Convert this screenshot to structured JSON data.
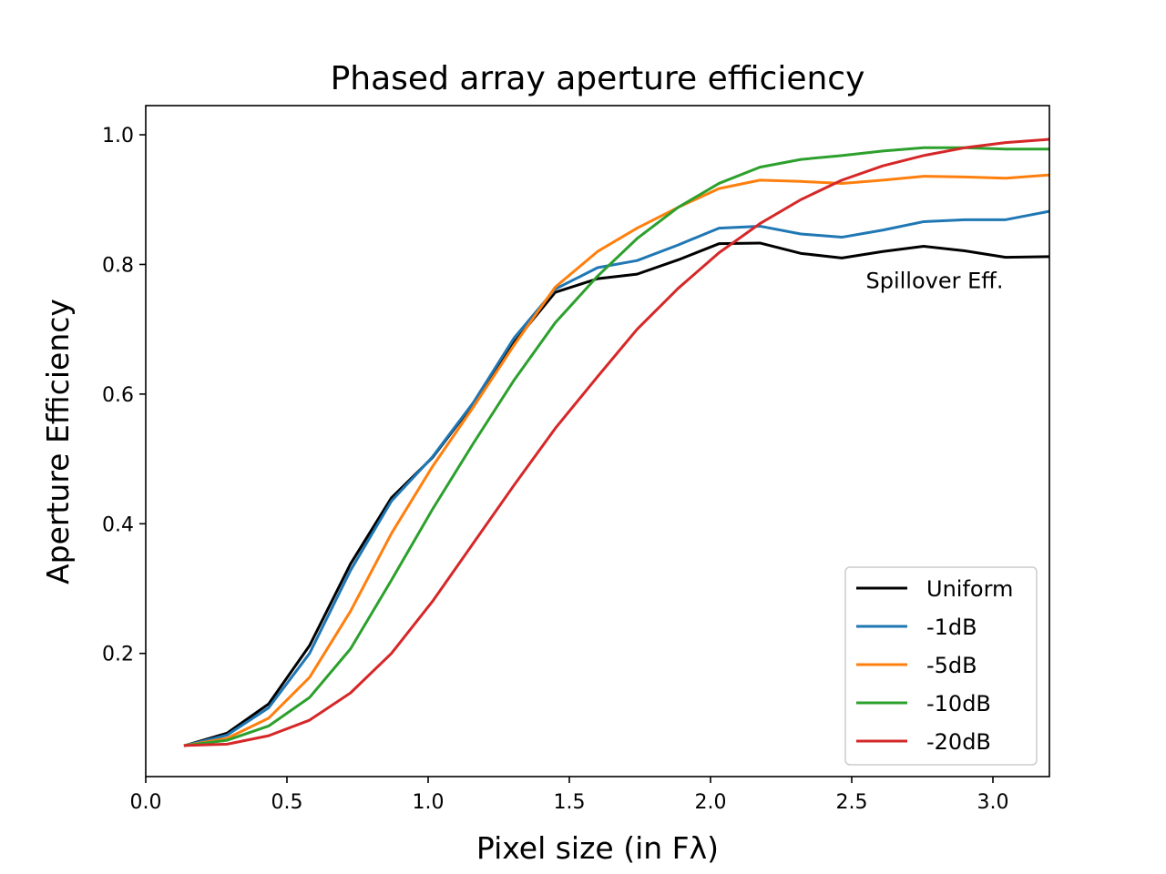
{
  "chart_data": {
    "type": "line",
    "title": "Phased array aperture efficiency",
    "xlabel": "Pixel size (in Fλ)",
    "ylabel": "Aperture Efficiency",
    "xlim": [
      0.0,
      3.2
    ],
    "ylim": [
      0.01,
      1.045
    ],
    "xticks": [
      0.0,
      0.5,
      1.0,
      1.5,
      2.0,
      2.5,
      3.0
    ],
    "xtick_labels": [
      "0.0",
      "0.5",
      "1.0",
      "1.5",
      "2.0",
      "2.5",
      "3.0"
    ],
    "yticks": [
      0.2,
      0.4,
      0.6,
      0.8,
      1.0
    ],
    "ytick_labels": [
      "0.2",
      "0.4",
      "0.6",
      "0.8",
      "1.0"
    ],
    "grid": false,
    "legend_position": "lower-right",
    "annotation": {
      "text": "Spillover Eff.",
      "x": 2.55,
      "y": 0.775
    },
    "x": [
      0.14,
      0.288,
      0.435,
      0.58,
      0.725,
      0.87,
      1.015,
      1.16,
      1.305,
      1.45,
      1.6,
      1.74,
      1.885,
      2.03,
      2.175,
      2.32,
      2.465,
      2.61,
      2.755,
      2.9,
      3.045,
      3.2
    ],
    "series": [
      {
        "name": "Uniform",
        "color": "#000000",
        "values": [
          0.058,
          0.077,
          0.122,
          0.212,
          0.338,
          0.44,
          0.502,
          0.585,
          0.68,
          0.757,
          0.778,
          0.785,
          0.807,
          0.832,
          0.833,
          0.817,
          0.81,
          0.82,
          0.828,
          0.821,
          0.811,
          0.812
        ]
      },
      {
        "name": "-1dB",
        "color": "#1f77b4",
        "values": [
          0.058,
          0.074,
          0.116,
          0.2,
          0.328,
          0.435,
          0.503,
          0.587,
          0.687,
          0.762,
          0.795,
          0.806,
          0.83,
          0.856,
          0.859,
          0.847,
          0.842,
          0.853,
          0.866,
          0.869,
          0.869,
          0.882
        ]
      },
      {
        "name": "-5dB",
        "color": "#ff7f0e",
        "values": [
          0.058,
          0.069,
          0.1,
          0.163,
          0.265,
          0.385,
          0.488,
          0.58,
          0.676,
          0.765,
          0.82,
          0.856,
          0.888,
          0.917,
          0.93,
          0.928,
          0.925,
          0.93,
          0.936,
          0.935,
          0.933,
          0.938
        ]
      },
      {
        "name": "-10dB",
        "color": "#2ca02c",
        "values": [
          0.058,
          0.066,
          0.088,
          0.132,
          0.207,
          0.313,
          0.422,
          0.524,
          0.622,
          0.71,
          0.782,
          0.84,
          0.888,
          0.925,
          0.95,
          0.962,
          0.968,
          0.975,
          0.98,
          0.98,
          0.978,
          0.978
        ]
      },
      {
        "name": "-20dB",
        "color": "#d62728",
        "values": [
          0.058,
          0.06,
          0.073,
          0.097,
          0.139,
          0.2,
          0.28,
          0.37,
          0.46,
          0.547,
          0.627,
          0.7,
          0.763,
          0.818,
          0.863,
          0.9,
          0.93,
          0.952,
          0.968,
          0.98,
          0.988,
          0.993
        ]
      }
    ]
  }
}
